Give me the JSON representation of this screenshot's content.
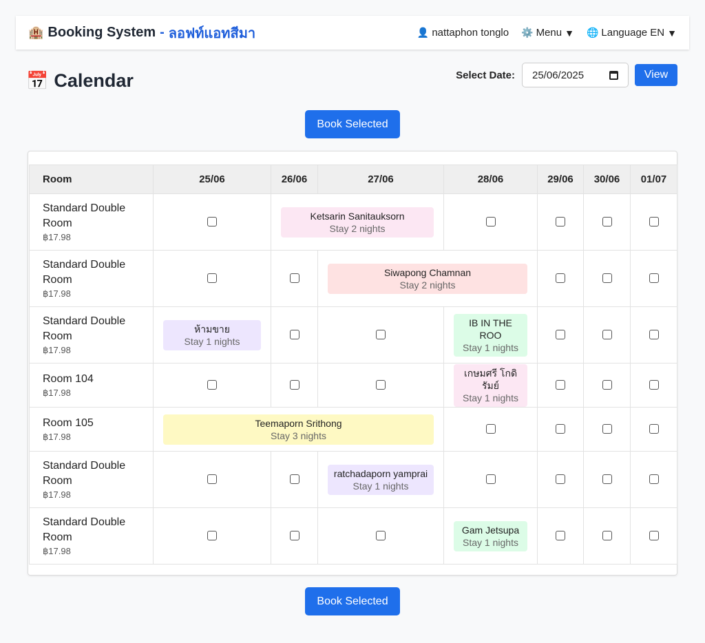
{
  "nav": {
    "brand_icon": "🏨",
    "brand_title": "Booking System",
    "brand_separator": "-",
    "brand_sub": "ลอฟท์แอทสีมา",
    "user_icon": "👤",
    "user_name": "nattaphon tonglo",
    "menu_icon": "⚙️",
    "menu_label": "Menu",
    "lang_icon": "🌐",
    "lang_label": "Language EN",
    "caret": "▼"
  },
  "page": {
    "title_icon": "📅",
    "title": "Calendar",
    "date_label": "Select Date:",
    "date_value": "25/06/2025",
    "view_button": "View",
    "book_button": "Book Selected"
  },
  "table": {
    "room_header": "Room",
    "dates": [
      "25/06",
      "26/06",
      "27/06",
      "28/06",
      "29/06",
      "30/06",
      "01/07"
    ],
    "rows": [
      {
        "name": "Standard Double Room",
        "price": "฿17.98",
        "cells": [
          {
            "type": "checkbox"
          },
          {
            "type": "booking",
            "span": 2,
            "guest": "Ketsarin Sanitauksorn",
            "stay": "Stay 2 nights",
            "color": "#fce7f3"
          },
          {
            "type": "checkbox"
          },
          {
            "type": "checkbox"
          },
          {
            "type": "checkbox"
          },
          {
            "type": "checkbox"
          }
        ]
      },
      {
        "name": "Standard Double Room",
        "price": "฿17.98",
        "cells": [
          {
            "type": "checkbox"
          },
          {
            "type": "checkbox"
          },
          {
            "type": "booking",
            "span": 2,
            "guest": "Siwapong Chamnan",
            "stay": "Stay 2 nights",
            "color": "#fee2e2"
          },
          {
            "type": "checkbox"
          },
          {
            "type": "checkbox"
          },
          {
            "type": "checkbox"
          }
        ]
      },
      {
        "name": "Standard Double Room",
        "price": "฿17.98",
        "cells": [
          {
            "type": "booking",
            "span": 1,
            "guest": "ห้ามขาย",
            "stay": "Stay 1 nights",
            "color": "#ede6fe"
          },
          {
            "type": "checkbox"
          },
          {
            "type": "checkbox"
          },
          {
            "type": "booking",
            "span": 1,
            "guest": "IB IN THE ROO",
            "stay": "Stay 1 nights",
            "color": "#dcfce7"
          },
          {
            "type": "checkbox"
          },
          {
            "type": "checkbox"
          },
          {
            "type": "checkbox"
          }
        ]
      },
      {
        "name": "Room 104",
        "price": "฿17.98",
        "cells": [
          {
            "type": "checkbox"
          },
          {
            "type": "checkbox"
          },
          {
            "type": "checkbox"
          },
          {
            "type": "booking",
            "span": 1,
            "guest": "เกษมศรี โกดิรัมย์",
            "stay": "Stay 1 nights",
            "color": "#fce7f3"
          },
          {
            "type": "checkbox"
          },
          {
            "type": "checkbox"
          },
          {
            "type": "checkbox"
          }
        ]
      },
      {
        "name": "Room 105",
        "price": "฿17.98",
        "cells": [
          {
            "type": "booking",
            "span": 3,
            "guest": "Teemaporn Srithong",
            "stay": "Stay 3 nights",
            "color": "#fef9c3"
          },
          {
            "type": "checkbox"
          },
          {
            "type": "checkbox"
          },
          {
            "type": "checkbox"
          },
          {
            "type": "checkbox"
          }
        ]
      },
      {
        "name": "Standard Double Room",
        "price": "฿17.98",
        "cells": [
          {
            "type": "checkbox"
          },
          {
            "type": "checkbox"
          },
          {
            "type": "booking",
            "span": 1,
            "guest": "ratchadaporn yamprai",
            "stay": "Stay 1 nights",
            "color": "#ede6fe"
          },
          {
            "type": "checkbox"
          },
          {
            "type": "checkbox"
          },
          {
            "type": "checkbox"
          },
          {
            "type": "checkbox"
          }
        ]
      },
      {
        "name": "Standard Double Room",
        "price": "฿17.98",
        "cells": [
          {
            "type": "checkbox"
          },
          {
            "type": "checkbox"
          },
          {
            "type": "checkbox"
          },
          {
            "type": "booking",
            "span": 1,
            "guest": "Gam Jetsupa",
            "stay": "Stay 1 nights",
            "color": "#dcfce7"
          },
          {
            "type": "checkbox"
          },
          {
            "type": "checkbox"
          },
          {
            "type": "checkbox"
          }
        ]
      }
    ]
  }
}
